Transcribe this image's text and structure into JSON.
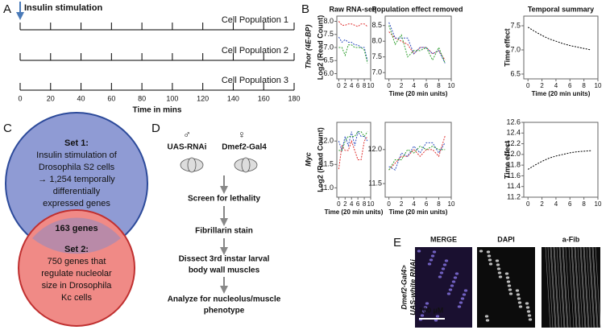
{
  "panels": {
    "a": {
      "label": "A",
      "title": "Insulin stimulation",
      "populations": [
        "Cell Population 1",
        "Cell Population 2",
        "Cell Population 3"
      ],
      "xlim": [
        0,
        180
      ],
      "xticks": [
        0,
        20,
        40,
        60,
        80,
        100,
        120,
        140,
        160,
        180
      ],
      "xlabel": "Time in mins"
    },
    "b": {
      "label": "B",
      "columns": [
        "Raw RNA-seq",
        "Population effect removed",
        "Temporal summary"
      ],
      "rows": [
        "Thor (4E-BP)",
        "Myc"
      ]
    },
    "c": {
      "label": "C",
      "set1": [
        "Set 1:",
        "Insulin stimulation of",
        "Drosophila S2 cells",
        "→ 1,254 temporally",
        "differentially",
        "expressed genes"
      ],
      "overlap": "163 genes",
      "set2": [
        "Set 2:",
        "750 genes that",
        "regulate nucleolar",
        "size in Drosophila",
        "Kc cells"
      ]
    },
    "d": {
      "label": "D",
      "male": "♂",
      "female": "♀",
      "line1": "UAS-RNAi",
      "line2": "Dmef2-Gal4",
      "steps": [
        [
          "Screen for lethality"
        ],
        [
          "Fibrillarin stain"
        ],
        [
          "Dissect 3rd instar larval",
          "body wall muscles"
        ],
        [
          "Analyze for nucleolus/muscle",
          "phenotype"
        ]
      ]
    },
    "e": {
      "label": "E",
      "columns": [
        "MERGE",
        "DAPI",
        "a-Fib"
      ],
      "row": [
        "Dmef2-Gal4>",
        "UAS-white RNAi"
      ],
      "scale": "100 µM"
    }
  },
  "chart_data": [
    {
      "type": "line",
      "ylabel": "Log2 (Read Count)",
      "x": [
        0,
        1,
        2,
        3,
        4,
        5,
        6,
        7,
        8,
        9
      ],
      "xlim": [
        -0.6,
        10
      ],
      "xticks": [
        0,
        2,
        4,
        6,
        8,
        10
      ],
      "ylim": [
        5.8,
        8.2
      ],
      "yticks": [
        {
          "value": 6,
          "label": "6.0"
        },
        6.5,
        {
          "value": 7,
          "label": "7.0"
        },
        7.5,
        {
          "value": 8,
          "label": "8.0"
        }
      ],
      "series": [
        {
          "color": "#e03030",
          "values": [
            8.0,
            7.85,
            7.85,
            7.9,
            7.9,
            7.85,
            7.8,
            7.9,
            7.9,
            7.8
          ]
        },
        {
          "color": "#3050c0",
          "values": [
            7.4,
            7.2,
            7.3,
            7.2,
            7.2,
            7.1,
            7.1,
            7.0,
            7.0,
            6.5
          ]
        },
        {
          "color": "#30a030",
          "values": [
            7.0,
            7.0,
            6.7,
            7.1,
            7.1,
            7.0,
            7.0,
            7.0,
            6.9,
            6.4
          ]
        }
      ]
    },
    {
      "type": "line",
      "xlabel": "Time (20 min units)",
      "x": [
        0,
        1,
        2,
        3,
        4,
        5,
        6,
        7,
        8,
        9
      ],
      "xlim": [
        -0.6,
        10
      ],
      "xticks": [
        0,
        2,
        4,
        6,
        8,
        10
      ],
      "ylim": [
        6.8,
        8.8
      ],
      "yticks": [
        {
          "value": 7,
          "label": "7.0"
        },
        7.5,
        {
          "value": 8,
          "label": "8.0"
        },
        8.5
      ],
      "series": [
        {
          "color": "#e03030",
          "values": [
            8.3,
            8.1,
            8.0,
            7.9,
            7.6,
            7.8,
            7.8,
            7.6,
            7.7,
            7.4
          ]
        },
        {
          "color": "#3050c0",
          "values": [
            8.6,
            8.1,
            8.1,
            8.1,
            7.6,
            7.8,
            7.8,
            7.6,
            7.7,
            7.3
          ]
        },
        {
          "color": "#30a030",
          "values": [
            8.5,
            7.9,
            8.2,
            7.5,
            7.7,
            7.7,
            7.8,
            7.4,
            7.8,
            7.3
          ]
        }
      ]
    },
    {
      "type": "line",
      "ylabel": "Time effect",
      "xlabel": "Time (20 min units)",
      "x": [
        0,
        1,
        2,
        3,
        4,
        5,
        6,
        7,
        8,
        9
      ],
      "xlim": [
        -0.6,
        10
      ],
      "xticks": [
        0,
        2,
        4,
        6,
        8,
        10
      ],
      "ylim": [
        6.4,
        7.7
      ],
      "yticks": [
        6.5,
        {
          "value": 7,
          "label": "7.0"
        },
        7.5
      ],
      "series": [
        {
          "color": "#000000",
          "values": [
            7.47,
            7.38,
            7.3,
            7.23,
            7.18,
            7.13,
            7.09,
            7.06,
            7.03,
            7.0
          ]
        }
      ]
    },
    {
      "type": "line",
      "ylabel": "Log2 (Read Count)",
      "xlabel": "Time (20 min units)",
      "x": [
        0,
        1,
        2,
        3,
        4,
        5,
        6,
        7,
        8,
        9
      ],
      "xlim": [
        -0.6,
        10
      ],
      "xticks": [
        0,
        2,
        4,
        6,
        8,
        10
      ],
      "ylim": [
        10.8,
        12.4
      ],
      "yticks": [
        {
          "value": 11,
          "label": "11.0"
        },
        11.5,
        {
          "value": 12,
          "label": "12.0"
        }
      ],
      "series": [
        {
          "color": "#e03030",
          "values": [
            11.4,
            11.9,
            11.8,
            11.8,
            12.0,
            11.8,
            11.6,
            11.6,
            12.0,
            12.1
          ]
        },
        {
          "color": "#3050c0",
          "values": [
            12.0,
            11.8,
            12.1,
            11.9,
            12.2,
            11.9,
            12.2,
            12.1,
            12.1,
            12.0
          ]
        },
        {
          "color": "#30a030",
          "values": [
            11.8,
            11.8,
            12.0,
            12.1,
            12.1,
            12.1,
            12.2,
            12.2,
            12.1,
            12.2
          ]
        }
      ]
    },
    {
      "type": "line",
      "xlabel": "Time (20 min units)",
      "x": [
        0,
        1,
        2,
        3,
        4,
        5,
        6,
        7,
        8,
        9
      ],
      "xlim": [
        -0.6,
        10
      ],
      "xticks": [
        0,
        2,
        4,
        6,
        8,
        10
      ],
      "ylim": [
        11.3,
        12.4
      ],
      "yticks": [
        11.5,
        {
          "value": 12,
          "label": "12.0"
        }
      ],
      "series": [
        {
          "color": "#e03030",
          "values": [
            11.7,
            11.8,
            11.9,
            11.9,
            12.0,
            11.9,
            12.0,
            12.0,
            11.9,
            12.2
          ]
        },
        {
          "color": "#3050c0",
          "values": [
            11.75,
            11.7,
            11.95,
            11.9,
            12.05,
            11.95,
            12.1,
            12.1,
            11.95,
            12.1
          ]
        },
        {
          "color": "#30a030",
          "values": [
            11.7,
            11.85,
            11.85,
            12.0,
            11.95,
            12.05,
            12.0,
            12.05,
            12.0,
            12.0
          ]
        }
      ]
    },
    {
      "type": "line",
      "ylabel": "Time effect",
      "x": [
        0,
        1,
        2,
        3,
        4,
        5,
        6,
        7,
        8,
        9
      ],
      "xlim": [
        -0.6,
        10
      ],
      "xticks": [
        0,
        2,
        4,
        6,
        8,
        10
      ],
      "ylim": [
        11.2,
        12.6
      ],
      "yticks": [
        {
          "value": 11.2,
          "label": "11.2"
        },
        {
          "value": 11.4,
          "label": "11.4"
        },
        {
          "value": 11.6,
          "label": "11.6"
        },
        {
          "value": 11.8,
          "label": "11.8"
        },
        {
          "value": 12,
          "label": "12.0"
        },
        {
          "value": 12.2,
          "label": "12.2"
        },
        {
          "value": 12.4,
          "label": "12.4"
        },
        {
          "value": 12.6,
          "label": "12.6"
        }
      ],
      "series": [
        {
          "color": "#000000",
          "values": [
            11.72,
            11.8,
            11.87,
            11.93,
            11.97,
            12.0,
            12.03,
            12.05,
            12.06,
            12.07
          ]
        }
      ]
    }
  ]
}
